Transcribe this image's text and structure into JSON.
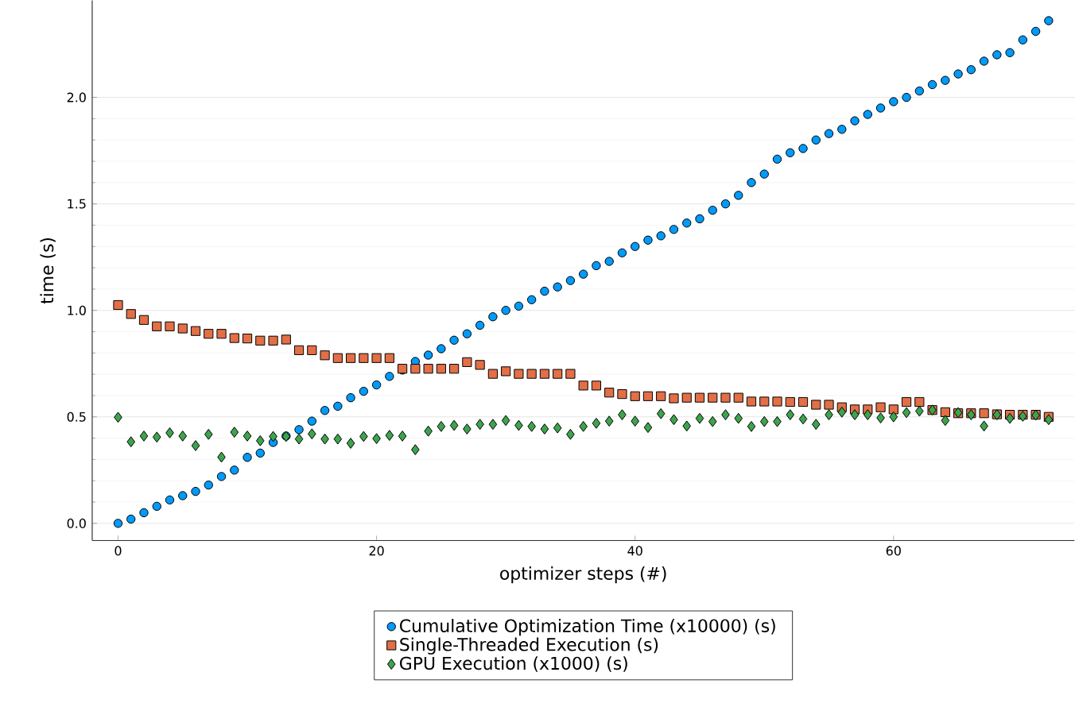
{
  "chart_data": {
    "type": "scatter",
    "xlabel": "optimizer steps (#)",
    "ylabel": "time (s)",
    "x": [
      0,
      1,
      2,
      3,
      4,
      5,
      6,
      7,
      8,
      9,
      10,
      11,
      12,
      13,
      14,
      15,
      16,
      17,
      18,
      19,
      20,
      21,
      22,
      23,
      24,
      25,
      26,
      27,
      28,
      29,
      30,
      31,
      32,
      33,
      34,
      35,
      36,
      37,
      38,
      39,
      40,
      41,
      42,
      43,
      44,
      45,
      46,
      47,
      48,
      49,
      50,
      51,
      52,
      53,
      54,
      55,
      56,
      57,
      58,
      59,
      60,
      61,
      62,
      63,
      64,
      65,
      66,
      67,
      68,
      69,
      70,
      71,
      72
    ],
    "xlim": [
      -2,
      74
    ],
    "xticks": [
      0,
      20,
      40,
      60
    ],
    "ylim": [
      -0.08,
      2.455
    ],
    "yticks": [
      {
        "value": 0,
        "label": "0.0"
      },
      {
        "value": 0.5,
        "label": "0.5"
      },
      {
        "value": 1,
        "label": "1.0"
      },
      {
        "value": 1.5,
        "label": "1.5"
      },
      {
        "value": 2,
        "label": "2.0"
      }
    ],
    "grid": "y",
    "legend": "bottom",
    "series": [
      {
        "name": "Cumulative Optimization Time (x10000) (s)",
        "color": "#009af9",
        "marker": "circle",
        "values": [
          0.0,
          0.02,
          0.05,
          0.08,
          0.11,
          0.13,
          0.15,
          0.18,
          0.22,
          0.25,
          0.31,
          0.33,
          0.38,
          0.41,
          0.44,
          0.48,
          0.53,
          0.55,
          0.59,
          0.62,
          0.65,
          0.69,
          0.72,
          0.76,
          0.79,
          0.82,
          0.86,
          0.89,
          0.93,
          0.97,
          1.0,
          1.02,
          1.05,
          1.09,
          1.11,
          1.14,
          1.17,
          1.21,
          1.23,
          1.27,
          1.3,
          1.33,
          1.35,
          1.38,
          1.41,
          1.43,
          1.47,
          1.5,
          1.54,
          1.6,
          1.64,
          1.71,
          1.74,
          1.76,
          1.8,
          1.83,
          1.85,
          1.89,
          1.92,
          1.95,
          1.98,
          2.0,
          2.03,
          2.06,
          2.08,
          2.11,
          2.13,
          2.17,
          2.2,
          2.21,
          2.27,
          2.31,
          2.36
        ]
      },
      {
        "name": "Single-Threaded Execution (s)",
        "color": "#e26f46",
        "marker": "square",
        "values": [
          1.025,
          0.983,
          0.955,
          0.925,
          0.925,
          0.915,
          0.903,
          0.89,
          0.89,
          0.87,
          0.868,
          0.858,
          0.858,
          0.863,
          0.813,
          0.813,
          0.789,
          0.776,
          0.776,
          0.776,
          0.776,
          0.776,
          0.726,
          0.726,
          0.726,
          0.726,
          0.726,
          0.757,
          0.744,
          0.702,
          0.714,
          0.702,
          0.702,
          0.702,
          0.702,
          0.702,
          0.647,
          0.647,
          0.614,
          0.607,
          0.597,
          0.597,
          0.597,
          0.587,
          0.59,
          0.59,
          0.59,
          0.59,
          0.59,
          0.572,
          0.572,
          0.572,
          0.57,
          0.57,
          0.557,
          0.557,
          0.545,
          0.535,
          0.535,
          0.545,
          0.535,
          0.57,
          0.57,
          0.532,
          0.522,
          0.517,
          0.517,
          0.517,
          0.512,
          0.51,
          0.51,
          0.51,
          0.5
        ]
      },
      {
        "name": "GPU Execution (x1000) (s)",
        "color": "#3da44d",
        "marker": "diamond",
        "values": [
          0.498,
          0.383,
          0.41,
          0.405,
          0.425,
          0.41,
          0.365,
          0.418,
          0.311,
          0.428,
          0.41,
          0.388,
          0.408,
          0.408,
          0.396,
          0.42,
          0.396,
          0.396,
          0.376,
          0.408,
          0.398,
          0.413,
          0.41,
          0.346,
          0.433,
          0.455,
          0.46,
          0.443,
          0.465,
          0.465,
          0.483,
          0.46,
          0.455,
          0.443,
          0.448,
          0.418,
          0.455,
          0.47,
          0.48,
          0.51,
          0.48,
          0.45,
          0.515,
          0.487,
          0.457,
          0.493,
          0.478,
          0.51,
          0.493,
          0.455,
          0.478,
          0.478,
          0.51,
          0.49,
          0.465,
          0.51,
          0.522,
          0.51,
          0.51,
          0.495,
          0.5,
          0.52,
          0.527,
          0.532,
          0.483,
          0.52,
          0.51,
          0.457,
          0.51,
          0.493,
          0.503,
          0.508,
          0.487
        ]
      }
    ]
  }
}
